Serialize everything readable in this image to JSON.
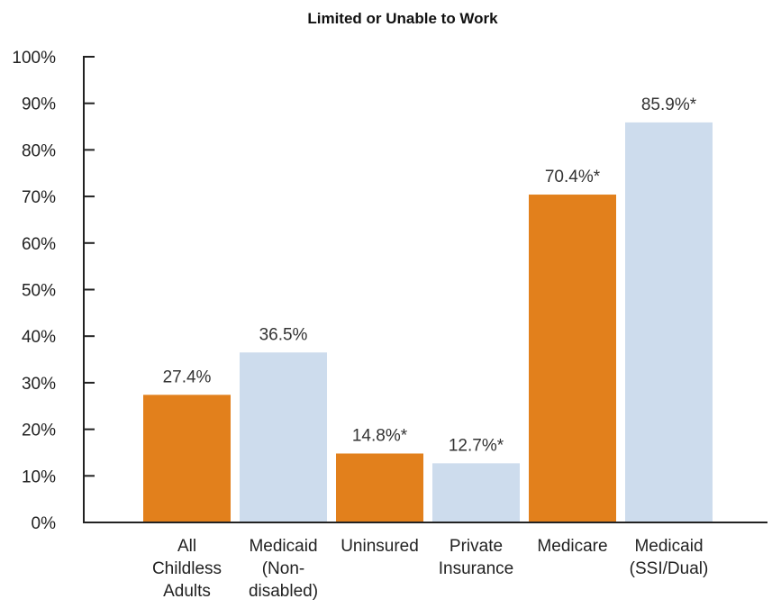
{
  "chart_data": {
    "type": "bar",
    "title": "Limited or Unable to Work",
    "xlabel": "",
    "ylabel": "",
    "ylim": [
      0,
      100
    ],
    "yticks": [
      0,
      10,
      20,
      30,
      40,
      50,
      60,
      70,
      80,
      90,
      100
    ],
    "ytick_suffix": "%",
    "grid": false,
    "legend": "none",
    "categories": [
      [
        "All",
        "Childless",
        "Adults"
      ],
      [
        "Medicaid",
        "(Non-",
        "disabled)"
      ],
      [
        "Uninsured"
      ],
      [
        "Private",
        "Insurance"
      ],
      [
        "Medicare"
      ],
      [
        "Medicaid",
        "(SSI/Dual)"
      ]
    ],
    "values": [
      27.4,
      36.5,
      14.8,
      12.7,
      70.4,
      85.9
    ],
    "value_labels": [
      "27.4%",
      "36.5%",
      "14.8%*",
      "12.7%*",
      "70.4%*",
      "85.9%*"
    ],
    "colors": [
      "#e2801c",
      "#cddced",
      "#e2801c",
      "#cddced",
      "#e2801c",
      "#cddced"
    ]
  }
}
